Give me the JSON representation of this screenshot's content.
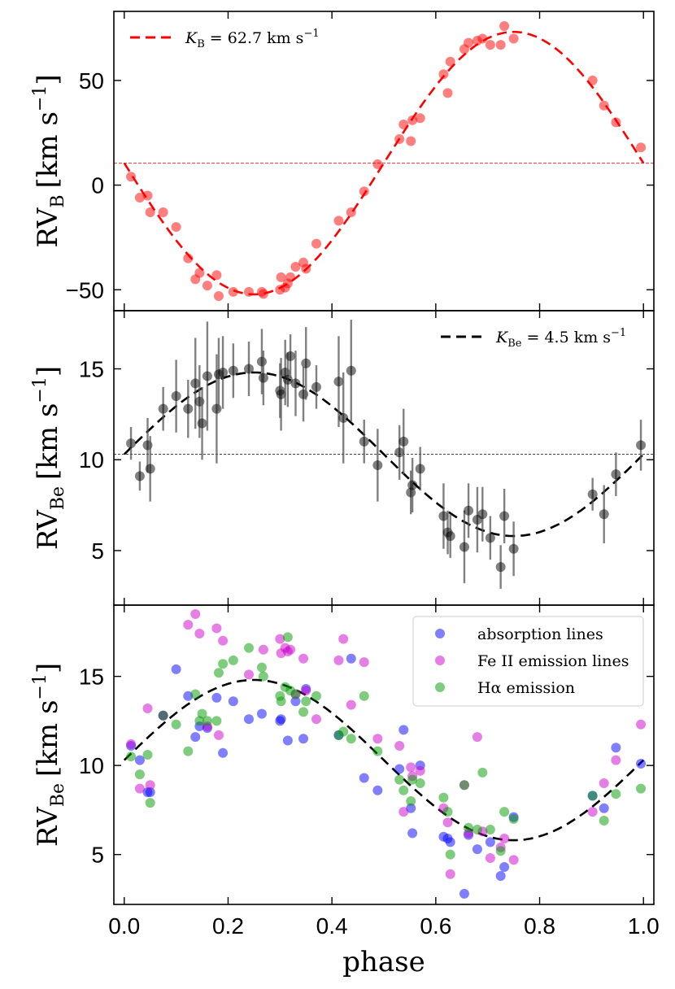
{
  "chart_data": [
    {
      "type": "scatter",
      "panel": "top",
      "xlim": [
        -0.02,
        1.02
      ],
      "ylim": [
        -60,
        83
      ],
      "yticks": [
        -50,
        0,
        50
      ],
      "ylabel": {
        "main": "RV",
        "sub": "B",
        "unit": "[km s",
        "sup": "−1",
        "close": "]"
      },
      "legend": {
        "position": "top-left",
        "label": "K",
        "label_sub": "B",
        "label_rest": " = 62.7 km s",
        "label_sup": "−1"
      },
      "reference_line": 10.5,
      "model": {
        "name": "K_B = 62.7 km s^-1",
        "K": 62.7,
        "gamma": 10.5,
        "style": "dashed",
        "color": "#ff0000"
      },
      "series": [
        {
          "name": "RV_B",
          "color": "#ff0000",
          "x": [
            0.013,
            0.03,
            0.045,
            0.05,
            0.075,
            0.1,
            0.123,
            0.137,
            0.145,
            0.16,
            0.178,
            0.182,
            0.21,
            0.24,
            0.265,
            0.268,
            0.3,
            0.302,
            0.31,
            0.315,
            0.32,
            0.33,
            0.345,
            0.35,
            0.37,
            0.413,
            0.437,
            0.462,
            0.488,
            0.53,
            0.538,
            0.552,
            0.555,
            0.57,
            0.615,
            0.623,
            0.628,
            0.655,
            0.663,
            0.68,
            0.69,
            0.705,
            0.725,
            0.732,
            0.75,
            0.902,
            0.924,
            0.947,
            0.995
          ],
          "y": [
            4,
            -6,
            -5,
            -13,
            -13,
            -20,
            -35,
            -45,
            -42,
            -48,
            -43,
            -53,
            -51,
            -51,
            -51,
            -52,
            -50,
            -44,
            -49,
            -47,
            -44,
            -39,
            -37,
            -40,
            -28,
            -17,
            -13,
            -3,
            10,
            22,
            29,
            21,
            31,
            32,
            53,
            44,
            59,
            65,
            68,
            69,
            70,
            67,
            67,
            76,
            70,
            50,
            38,
            30,
            18
          ]
        }
      ]
    },
    {
      "type": "scatter",
      "panel": "middle",
      "xlim": [
        -0.02,
        1.02
      ],
      "ylim": [
        2.0,
        18.2
      ],
      "yticks": [
        5,
        10,
        15
      ],
      "ylabel": {
        "main": "RV",
        "sub": "Be",
        "unit": "[km s",
        "sup": "−1",
        "close": "]"
      },
      "legend": {
        "position": "top-right",
        "label": "K",
        "label_sub": "Be",
        "label_rest": " = 4.5 km s",
        "label_sup": "−1"
      },
      "reference_line": 10.3,
      "model": {
        "name": "K_Be = 4.5 km s^-1",
        "K": 4.5,
        "gamma": 10.3,
        "style": "dashed",
        "color": "#000000"
      },
      "series": [
        {
          "name": "RV_Be",
          "color": "#000000",
          "x": [
            0.013,
            0.03,
            0.045,
            0.05,
            0.075,
            0.1,
            0.123,
            0.137,
            0.145,
            0.15,
            0.16,
            0.178,
            0.182,
            0.19,
            0.21,
            0.24,
            0.265,
            0.268,
            0.3,
            0.302,
            0.31,
            0.315,
            0.32,
            0.33,
            0.345,
            0.35,
            0.37,
            0.413,
            0.422,
            0.437,
            0.462,
            0.488,
            0.53,
            0.538,
            0.552,
            0.555,
            0.57,
            0.615,
            0.623,
            0.628,
            0.655,
            0.663,
            0.68,
            0.69,
            0.705,
            0.725,
            0.732,
            0.75,
            0.902,
            0.924,
            0.947,
            0.995
          ],
          "y": [
            10.9,
            9.1,
            10.8,
            9.5,
            12.8,
            13.5,
            12.8,
            14.2,
            13.2,
            12.0,
            14.6,
            12.8,
            14.7,
            14.8,
            14.9,
            15.0,
            15.4,
            14.5,
            13.8,
            13.6,
            14.8,
            14.4,
            15.7,
            14.2,
            13.6,
            15.3,
            14.0,
            14.3,
            12.3,
            14.9,
            11.0,
            9.7,
            10.4,
            11.0,
            8.2,
            8.6,
            9.5,
            6.9,
            6.0,
            5.8,
            5.2,
            7.2,
            6.7,
            7.0,
            5.7,
            4.1,
            6.9,
            5.1,
            8.1,
            7.0,
            9.2,
            10.8
          ],
          "err": [
            0.9,
            0.8,
            1.5,
            1.8,
            1.2,
            2.0,
            1.6,
            2.5,
            2.0,
            2.0,
            3.0,
            3.0,
            2.0,
            2.0,
            1.5,
            1.5,
            1.8,
            1.5,
            1.5,
            2.0,
            1.8,
            1.5,
            1.2,
            1.8,
            1.5,
            2.0,
            1.2,
            2.5,
            2.5,
            2.8,
            1.2,
            2.0,
            1.5,
            1.8,
            1.2,
            1.5,
            1.2,
            1.8,
            1.2,
            1.2,
            2.0,
            1.5,
            1.8,
            1.5,
            1.2,
            1.2,
            1.5,
            1.5,
            0.9,
            1.6,
            1.2,
            1.4
          ]
        }
      ]
    },
    {
      "type": "scatter",
      "panel": "bottom",
      "xlim": [
        -0.02,
        1.02
      ],
      "xticks": [
        0.0,
        0.2,
        0.4,
        0.6,
        0.8,
        1.0
      ],
      "xtick_labels": [
        "0.0",
        "0.2",
        "0.4",
        "0.6",
        "0.8",
        "1.0"
      ],
      "xlabel": "phase",
      "ylim": [
        2.2,
        19.0
      ],
      "yticks": [
        5,
        10,
        15
      ],
      "ylabel": {
        "main": "RV",
        "sub": "Be",
        "unit": "[km s",
        "sup": "−1",
        "close": "]"
      },
      "legend": {
        "position": "top-right",
        "entries": [
          "absorption lines",
          "Fe II emission lines",
          "Hα emission"
        ]
      },
      "model": {
        "K": 4.5,
        "gamma": 10.3,
        "style": "dashed",
        "color": "#000000"
      },
      "series": [
        {
          "name": "absorption lines",
          "color": "#0000ff",
          "x": [
            0.013,
            0.03,
            0.045,
            0.05,
            0.075,
            0.1,
            0.123,
            0.137,
            0.145,
            0.16,
            0.178,
            0.19,
            0.21,
            0.24,
            0.265,
            0.3,
            0.302,
            0.315,
            0.33,
            0.345,
            0.35,
            0.413,
            0.437,
            0.462,
            0.488,
            0.53,
            0.538,
            0.552,
            0.555,
            0.57,
            0.615,
            0.623,
            0.628,
            0.655,
            0.663,
            0.68,
            0.705,
            0.725,
            0.732,
            0.75,
            0.902,
            0.924,
            0.947,
            0.995
          ],
          "y": [
            11.1,
            10.3,
            8.5,
            8.5,
            12.8,
            15.4,
            13.9,
            11.6,
            12.2,
            12.1,
            13.8,
            10.7,
            13.6,
            12.6,
            12.9,
            12.5,
            12.6,
            11.4,
            13.6,
            11.5,
            14.3,
            11.7,
            16.0,
            9.3,
            8.6,
            9.8,
            12.0,
            7.6,
            6.2,
            10.0,
            6.0,
            5.9,
            5.7,
            2.8,
            6.1,
            5.3,
            5.7,
            3.8,
            4.3,
            7.1,
            8.3,
            7.6,
            11.0,
            10.1
          ]
        },
        {
          "name": "Fe II emission lines",
          "color": "#cc00cc",
          "x": [
            0.013,
            0.03,
            0.045,
            0.05,
            0.075,
            0.123,
            0.137,
            0.145,
            0.16,
            0.178,
            0.182,
            0.19,
            0.24,
            0.268,
            0.3,
            0.302,
            0.31,
            0.315,
            0.32,
            0.33,
            0.345,
            0.35,
            0.37,
            0.413,
            0.422,
            0.437,
            0.462,
            0.488,
            0.53,
            0.538,
            0.552,
            0.555,
            0.57,
            0.615,
            0.623,
            0.628,
            0.655,
            0.663,
            0.68,
            0.69,
            0.705,
            0.725,
            0.732,
            0.75,
            0.902,
            0.924,
            0.947,
            0.995
          ],
          "y": [
            11.2,
            8.7,
            13.2,
            8.9,
            12.8,
            17.9,
            18.5,
            17.4,
            12.2,
            17.7,
            11.7,
            17.0,
            15.1,
            16.5,
            17.1,
            16.3,
            16.6,
            16.4,
            16.5,
            14.0,
            16.0,
            14.2,
            12.6,
            15.9,
            17.1,
            13.4,
            15.8,
            11.5,
            11.1,
            7.4,
            9.9,
            9.4,
            9.7,
            7.6,
            6.8,
            3.9,
            8.9,
            6.2,
            11.6,
            6.3,
            4.8,
            5.4,
            5.9,
            4.7,
            7.4,
            9.0,
            10.3,
            12.3
          ]
        },
        {
          "name": "Hα emission",
          "color": "#009900",
          "x": [
            0.013,
            0.03,
            0.045,
            0.05,
            0.075,
            0.1,
            0.123,
            0.137,
            0.145,
            0.15,
            0.16,
            0.178,
            0.182,
            0.19,
            0.21,
            0.24,
            0.265,
            0.268,
            0.3,
            0.302,
            0.31,
            0.315,
            0.32,
            0.33,
            0.345,
            0.35,
            0.37,
            0.413,
            0.422,
            0.437,
            0.462,
            0.488,
            0.53,
            0.538,
            0.552,
            0.555,
            0.57,
            0.615,
            0.623,
            0.628,
            0.655,
            0.663,
            0.68,
            0.69,
            0.705,
            0.725,
            0.732,
            0.75,
            0.902,
            0.924,
            0.947,
            0.995
          ],
          "y": [
            10.5,
            9.5,
            10.6,
            7.9,
            12.8,
            12.3,
            10.8,
            14.0,
            12.5,
            12.9,
            12.5,
            12.5,
            15.2,
            15.7,
            15.9,
            16.6,
            15.5,
            15.0,
            13.9,
            13.6,
            14.4,
            17.2,
            14.2,
            14.0,
            13.0,
            13.6,
            13.9,
            11.7,
            11.9,
            11.5,
            13.9,
            10.8,
            9.2,
            8.6,
            8.0,
            9.2,
            9.0,
            8.2,
            7.4,
            5.0,
            8.9,
            6.5,
            6.4,
            9.6,
            6.4,
            5.2,
            7.4,
            7.0,
            8.3,
            6.9,
            8.4,
            8.7
          ]
        }
      ]
    }
  ]
}
